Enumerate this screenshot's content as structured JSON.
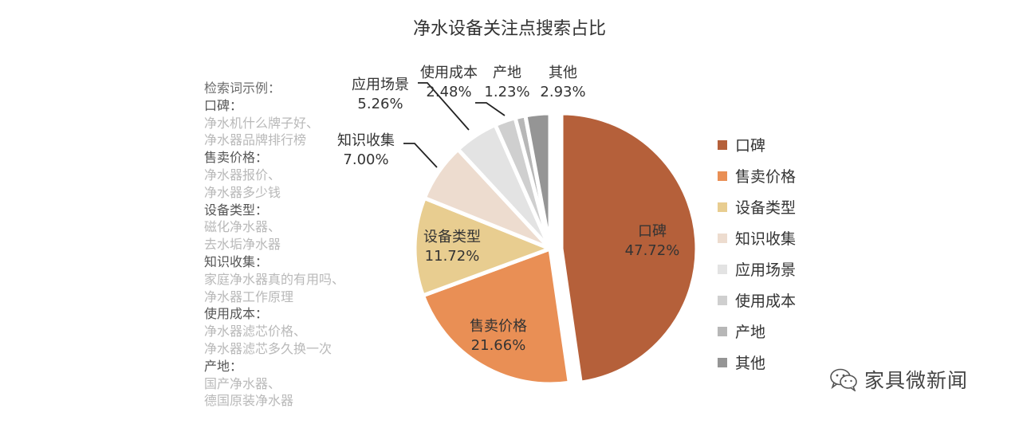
{
  "chart_data": {
    "type": "pie",
    "title": "净水设备关注点搜索占比",
    "categories": [
      "口碑",
      "售卖价格",
      "设备类型",
      "知识收集",
      "应用场景",
      "使用成本",
      "产地",
      "其他"
    ],
    "values": [
      47.72,
      21.66,
      11.72,
      7.0,
      5.26,
      2.48,
      1.23,
      2.93
    ],
    "value_labels": [
      "47.72%",
      "21.66%",
      "11.72%",
      "7.00%",
      "5.26%",
      "2.48%",
      "1.23%",
      "2.93%"
    ],
    "colors": [
      "#B5603A",
      "#E98F55",
      "#E8CD90",
      "#EDDCCF",
      "#E3E3E3",
      "#CFCFCF",
      "#B7B7B7",
      "#959595"
    ],
    "legend_position": "right"
  },
  "notes": {
    "header": "检索词示例：",
    "groups": [
      {
        "category": "口碑：",
        "examples": [
          "净水机什么牌子好、",
          "净水器品牌排行榜"
        ]
      },
      {
        "category": "售卖价格：",
        "examples": [
          "净水器报价、",
          "净水器多少钱"
        ]
      },
      {
        "category": "设备类型：",
        "examples": [
          "磁化净水器、",
          "去水垢净水器"
        ]
      },
      {
        "category": "知识收集：",
        "examples": [
          "家庭净水器真的有用吗、",
          "净水器工作原理"
        ]
      },
      {
        "category": "使用成本：",
        "examples": [
          "净水器滤芯价格、",
          "净水器滤芯多久换一次"
        ]
      },
      {
        "category": "产地：",
        "examples": [
          "国产净水器、",
          "德国原装净水器"
        ]
      }
    ]
  },
  "watermark": {
    "icon": "wechat-icon",
    "text": "家具微新闻"
  }
}
